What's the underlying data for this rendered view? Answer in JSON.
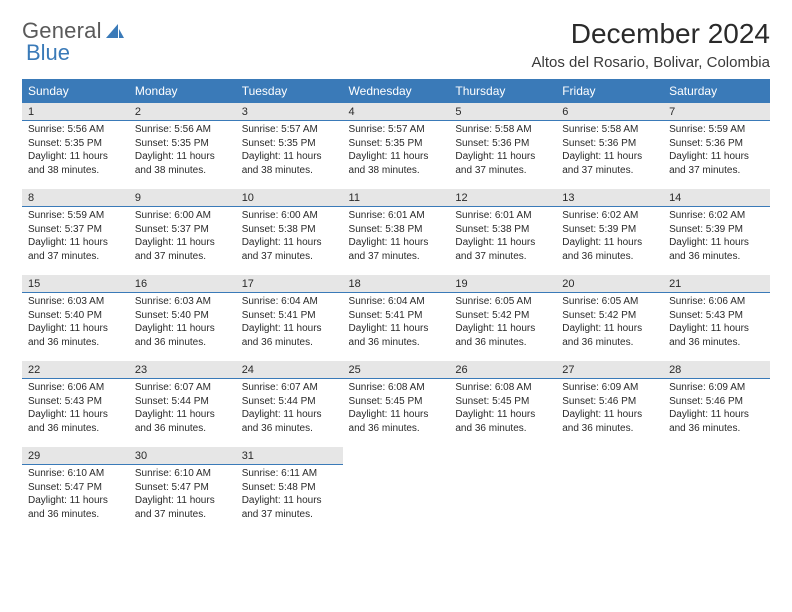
{
  "logo": {
    "text1": "General",
    "text2": "Blue"
  },
  "title": "December 2024",
  "location": "Altos del Rosario, Bolivar, Colombia",
  "colors": {
    "header_bg": "#3a7ab8",
    "header_text": "#ffffff",
    "daynum_bg": "#e6e6e6",
    "daynum_border": "#3a7ab8",
    "body_text": "#2a2a2a",
    "page_bg": "#ffffff"
  },
  "typography": {
    "title_fontsize": 28,
    "location_fontsize": 15,
    "th_fontsize": 12,
    "cell_fontsize": 10
  },
  "weekdays": [
    "Sunday",
    "Monday",
    "Tuesday",
    "Wednesday",
    "Thursday",
    "Friday",
    "Saturday"
  ],
  "weeks": [
    [
      {
        "n": "1",
        "sr": "Sunrise: 5:56 AM",
        "ss": "Sunset: 5:35 PM",
        "dl": "Daylight: 11 hours and 38 minutes."
      },
      {
        "n": "2",
        "sr": "Sunrise: 5:56 AM",
        "ss": "Sunset: 5:35 PM",
        "dl": "Daylight: 11 hours and 38 minutes."
      },
      {
        "n": "3",
        "sr": "Sunrise: 5:57 AM",
        "ss": "Sunset: 5:35 PM",
        "dl": "Daylight: 11 hours and 38 minutes."
      },
      {
        "n": "4",
        "sr": "Sunrise: 5:57 AM",
        "ss": "Sunset: 5:35 PM",
        "dl": "Daylight: 11 hours and 38 minutes."
      },
      {
        "n": "5",
        "sr": "Sunrise: 5:58 AM",
        "ss": "Sunset: 5:36 PM",
        "dl": "Daylight: 11 hours and 37 minutes."
      },
      {
        "n": "6",
        "sr": "Sunrise: 5:58 AM",
        "ss": "Sunset: 5:36 PM",
        "dl": "Daylight: 11 hours and 37 minutes."
      },
      {
        "n": "7",
        "sr": "Sunrise: 5:59 AM",
        "ss": "Sunset: 5:36 PM",
        "dl": "Daylight: 11 hours and 37 minutes."
      }
    ],
    [
      {
        "n": "8",
        "sr": "Sunrise: 5:59 AM",
        "ss": "Sunset: 5:37 PM",
        "dl": "Daylight: 11 hours and 37 minutes."
      },
      {
        "n": "9",
        "sr": "Sunrise: 6:00 AM",
        "ss": "Sunset: 5:37 PM",
        "dl": "Daylight: 11 hours and 37 minutes."
      },
      {
        "n": "10",
        "sr": "Sunrise: 6:00 AM",
        "ss": "Sunset: 5:38 PM",
        "dl": "Daylight: 11 hours and 37 minutes."
      },
      {
        "n": "11",
        "sr": "Sunrise: 6:01 AM",
        "ss": "Sunset: 5:38 PM",
        "dl": "Daylight: 11 hours and 37 minutes."
      },
      {
        "n": "12",
        "sr": "Sunrise: 6:01 AM",
        "ss": "Sunset: 5:38 PM",
        "dl": "Daylight: 11 hours and 37 minutes."
      },
      {
        "n": "13",
        "sr": "Sunrise: 6:02 AM",
        "ss": "Sunset: 5:39 PM",
        "dl": "Daylight: 11 hours and 36 minutes."
      },
      {
        "n": "14",
        "sr": "Sunrise: 6:02 AM",
        "ss": "Sunset: 5:39 PM",
        "dl": "Daylight: 11 hours and 36 minutes."
      }
    ],
    [
      {
        "n": "15",
        "sr": "Sunrise: 6:03 AM",
        "ss": "Sunset: 5:40 PM",
        "dl": "Daylight: 11 hours and 36 minutes."
      },
      {
        "n": "16",
        "sr": "Sunrise: 6:03 AM",
        "ss": "Sunset: 5:40 PM",
        "dl": "Daylight: 11 hours and 36 minutes."
      },
      {
        "n": "17",
        "sr": "Sunrise: 6:04 AM",
        "ss": "Sunset: 5:41 PM",
        "dl": "Daylight: 11 hours and 36 minutes."
      },
      {
        "n": "18",
        "sr": "Sunrise: 6:04 AM",
        "ss": "Sunset: 5:41 PM",
        "dl": "Daylight: 11 hours and 36 minutes."
      },
      {
        "n": "19",
        "sr": "Sunrise: 6:05 AM",
        "ss": "Sunset: 5:42 PM",
        "dl": "Daylight: 11 hours and 36 minutes."
      },
      {
        "n": "20",
        "sr": "Sunrise: 6:05 AM",
        "ss": "Sunset: 5:42 PM",
        "dl": "Daylight: 11 hours and 36 minutes."
      },
      {
        "n": "21",
        "sr": "Sunrise: 6:06 AM",
        "ss": "Sunset: 5:43 PM",
        "dl": "Daylight: 11 hours and 36 minutes."
      }
    ],
    [
      {
        "n": "22",
        "sr": "Sunrise: 6:06 AM",
        "ss": "Sunset: 5:43 PM",
        "dl": "Daylight: 11 hours and 36 minutes."
      },
      {
        "n": "23",
        "sr": "Sunrise: 6:07 AM",
        "ss": "Sunset: 5:44 PM",
        "dl": "Daylight: 11 hours and 36 minutes."
      },
      {
        "n": "24",
        "sr": "Sunrise: 6:07 AM",
        "ss": "Sunset: 5:44 PM",
        "dl": "Daylight: 11 hours and 36 minutes."
      },
      {
        "n": "25",
        "sr": "Sunrise: 6:08 AM",
        "ss": "Sunset: 5:45 PM",
        "dl": "Daylight: 11 hours and 36 minutes."
      },
      {
        "n": "26",
        "sr": "Sunrise: 6:08 AM",
        "ss": "Sunset: 5:45 PM",
        "dl": "Daylight: 11 hours and 36 minutes."
      },
      {
        "n": "27",
        "sr": "Sunrise: 6:09 AM",
        "ss": "Sunset: 5:46 PM",
        "dl": "Daylight: 11 hours and 36 minutes."
      },
      {
        "n": "28",
        "sr": "Sunrise: 6:09 AM",
        "ss": "Sunset: 5:46 PM",
        "dl": "Daylight: 11 hours and 36 minutes."
      }
    ],
    [
      {
        "n": "29",
        "sr": "Sunrise: 6:10 AM",
        "ss": "Sunset: 5:47 PM",
        "dl": "Daylight: 11 hours and 36 minutes."
      },
      {
        "n": "30",
        "sr": "Sunrise: 6:10 AM",
        "ss": "Sunset: 5:47 PM",
        "dl": "Daylight: 11 hours and 37 minutes."
      },
      {
        "n": "31",
        "sr": "Sunrise: 6:11 AM",
        "ss": "Sunset: 5:48 PM",
        "dl": "Daylight: 11 hours and 37 minutes."
      },
      null,
      null,
      null,
      null
    ]
  ]
}
